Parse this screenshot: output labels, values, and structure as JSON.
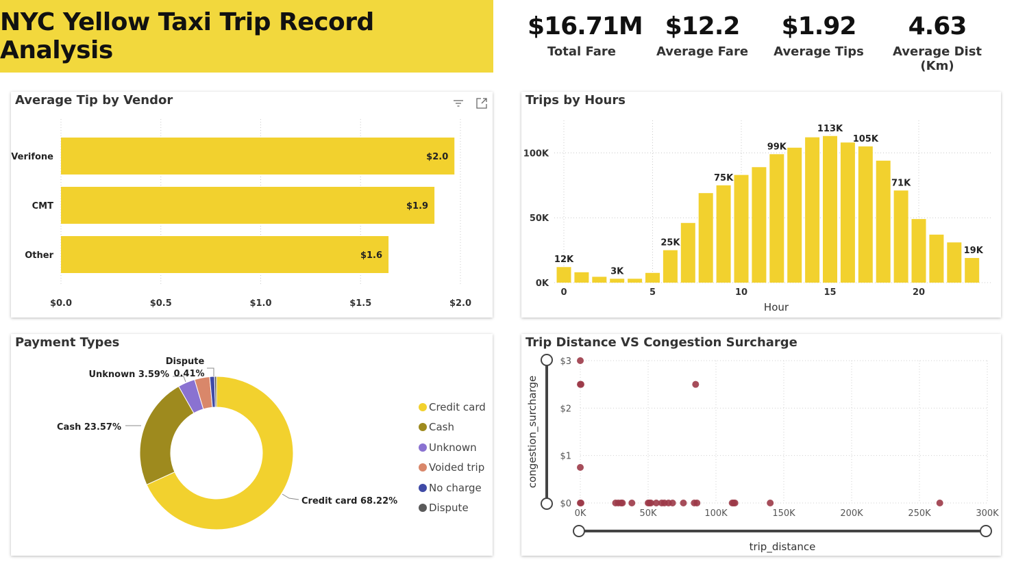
{
  "header": {
    "title": "NYC Yellow Taxi Trip Record Analysis"
  },
  "kpis": [
    {
      "value": "$16.71M",
      "label": "Total Fare"
    },
    {
      "value": "$12.2",
      "label": "Average Fare"
    },
    {
      "value": "$1.92",
      "label": "Average Tips"
    },
    {
      "value": "4.63",
      "label": "Average Dist (Km)"
    }
  ],
  "chart_data": [
    {
      "type": "bar",
      "orientation": "horizontal",
      "title": "Average Tip by Vendor",
      "categories": [
        "Verifone",
        "CMT",
        "Other"
      ],
      "values": [
        1.97,
        1.87,
        1.64
      ],
      "data_labels": [
        "$2.0",
        "$1.9",
        "$1.6"
      ],
      "xlim": [
        0,
        2.0
      ],
      "x_ticks": [
        "$0.0",
        "$0.5",
        "$1.0",
        "$1.5",
        "$2.0"
      ],
      "color": "#f2d12e",
      "grid": "vertical dotted"
    },
    {
      "type": "bar",
      "title": "Trips by Hours",
      "xlabel": "Hour",
      "x": [
        0,
        1,
        2,
        3,
        4,
        5,
        6,
        7,
        8,
        9,
        10,
        11,
        12,
        13,
        14,
        15,
        16,
        17,
        18,
        19,
        20,
        21,
        22,
        23
      ],
      "values": [
        12000,
        8000,
        4500,
        3000,
        3000,
        7500,
        25000,
        46000,
        69000,
        75000,
        83000,
        89000,
        99000,
        104000,
        112000,
        113000,
        108000,
        105000,
        94000,
        71000,
        49000,
        37000,
        31000,
        19000
      ],
      "data_labels": {
        "0": "12K",
        "3": "3K",
        "6": "25K",
        "9": "75K",
        "12": "99K",
        "15": "113K",
        "17": "105K",
        "19": "71K",
        "23": "19K"
      },
      "x_ticks": [
        "0",
        "5",
        "10",
        "15",
        "20"
      ],
      "y_ticks": [
        "0K",
        "50K",
        "100K"
      ],
      "ylim": [
        0,
        125000
      ],
      "color": "#f2d12e"
    },
    {
      "type": "pie",
      "subtype": "donut",
      "title": "Payment Types",
      "slices": [
        {
          "name": "Credit card",
          "value": 68.22,
          "label": "Credit card 68.22%",
          "color": "#f2d12e"
        },
        {
          "name": "Cash",
          "value": 23.57,
          "label": "Cash 23.57%",
          "color": "#9e8a1e"
        },
        {
          "name": "Unknown",
          "value": 3.59,
          "label": "Unknown 3.59%",
          "color": "#8a72d1"
        },
        {
          "name": "Voided trip",
          "value": 3.2,
          "label": "",
          "color": "#d9876a"
        },
        {
          "name": "No charge",
          "value": 1.01,
          "label": "",
          "color": "#3f4aa6"
        },
        {
          "name": "Dispute",
          "value": 0.41,
          "label": "Dispute 0.41%",
          "color": "#5a5a5a"
        }
      ],
      "legend": [
        "Credit card",
        "Cash",
        "Unknown",
        "Voided trip",
        "No charge",
        "Dispute"
      ],
      "legend_position": "right"
    },
    {
      "type": "scatter",
      "title": "Trip Distance VS Congestion Surcharge",
      "xlabel": "trip_distance",
      "ylabel": "congestion_surcharge",
      "xlim": [
        0,
        300000
      ],
      "ylim": [
        0,
        3
      ],
      "x_ticks": [
        "0K",
        "50K",
        "100K",
        "150K",
        "200K",
        "250K",
        "300K"
      ],
      "y_ticks": [
        "$0",
        "$1",
        "$2",
        "$3"
      ],
      "points": [
        [
          0,
          3
        ],
        [
          0,
          2.5
        ],
        [
          500,
          2.5
        ],
        [
          85000,
          2.5
        ],
        [
          0,
          0.75
        ],
        [
          0,
          0
        ],
        [
          500,
          0
        ],
        [
          26000,
          0
        ],
        [
          28000,
          0
        ],
        [
          30000,
          0
        ],
        [
          31000,
          0
        ],
        [
          38000,
          0
        ],
        [
          50000,
          0
        ],
        [
          51000,
          0
        ],
        [
          52000,
          0
        ],
        [
          56000,
          0
        ],
        [
          60000,
          0
        ],
        [
          62000,
          0
        ],
        [
          65000,
          0
        ],
        [
          68000,
          0
        ],
        [
          76000,
          0
        ],
        [
          84000,
          0
        ],
        [
          86000,
          0
        ],
        [
          112000,
          0
        ],
        [
          113000,
          0
        ],
        [
          114000,
          0
        ],
        [
          140000,
          0
        ],
        [
          265000,
          0
        ]
      ],
      "color": "#9c3a48"
    }
  ]
}
